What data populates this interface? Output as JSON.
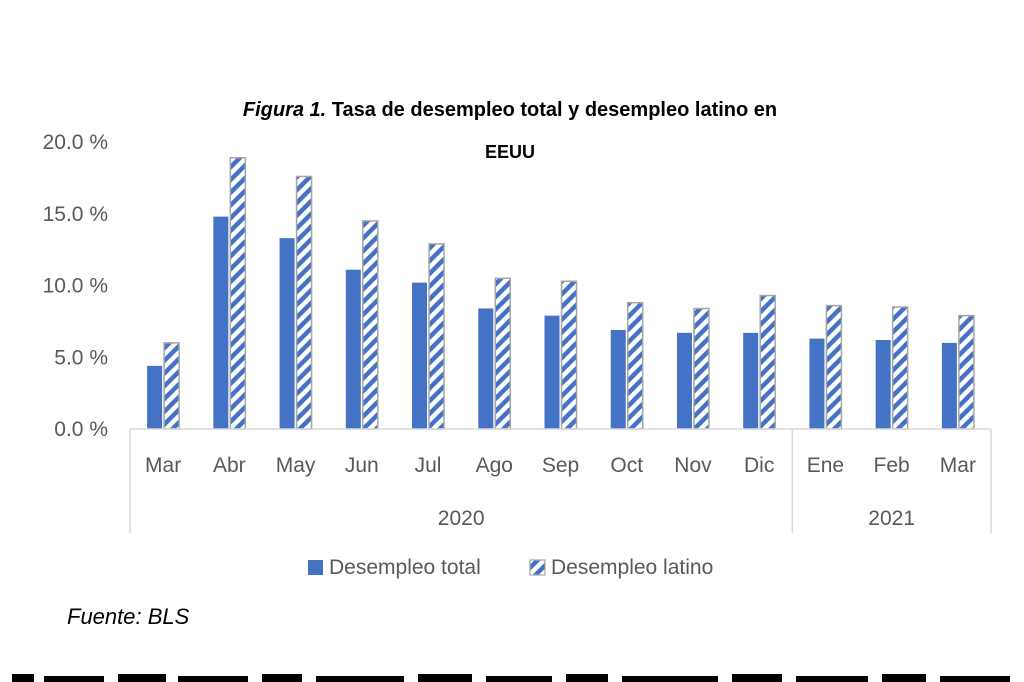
{
  "chart_data": {
    "type": "bar",
    "title_prefix": "Figura 1.",
    "title_line1": "Tasa de desempleo total y desempleo latino en",
    "title_line2": "EEUU",
    "categories": [
      "Mar",
      "Abr",
      "May",
      "Jun",
      "Jul",
      "Ago",
      "Sep",
      "Oct",
      "Nov",
      "Dic",
      "Ene",
      "Feb",
      "Mar"
    ],
    "year_groups": [
      {
        "label": "2020",
        "count": 10
      },
      {
        "label": "2021",
        "count": 3
      }
    ],
    "series": [
      {
        "name": "Desempleo total",
        "color": "#4472C4",
        "pattern": "solid",
        "values": [
          4.4,
          14.8,
          13.3,
          11.1,
          10.2,
          8.4,
          7.9,
          6.9,
          6.7,
          6.7,
          6.3,
          6.2,
          6.0
        ]
      },
      {
        "name": "Desempleo latino",
        "color": "#4472C4",
        "pattern": "diagonal-stripes",
        "values": [
          6.0,
          18.9,
          17.6,
          14.5,
          12.9,
          10.5,
          10.3,
          8.8,
          8.4,
          9.3,
          8.6,
          8.5,
          7.9
        ]
      }
    ],
    "yticks": [
      "0.0 %",
      "5.0 %",
      "10.0 %",
      "15.0 %",
      "20.0 %"
    ],
    "ylim": [
      0,
      20
    ],
    "grid": false,
    "legend_position": "bottom"
  },
  "source": "Fuente: BLS"
}
